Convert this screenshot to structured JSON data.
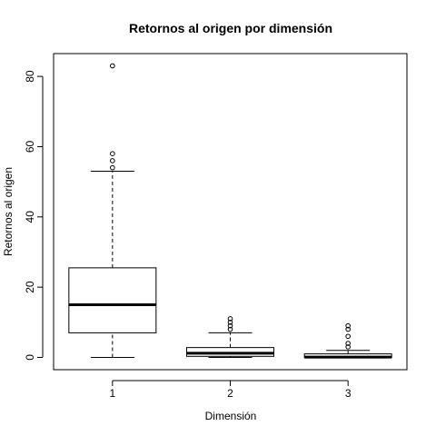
{
  "chart_data": {
    "type": "boxplot",
    "title": "Retornos al origen por dimensión",
    "xlabel": "Dimensión",
    "ylabel": "Retornos al origen",
    "categories": [
      "1",
      "2",
      "3"
    ],
    "ylim": [
      -3.5,
      86.5
    ],
    "yticks": [
      0,
      20,
      40,
      60,
      80
    ],
    "grid": false,
    "boxes": [
      {
        "category": "1",
        "whisker_low": 0,
        "q1": 7,
        "median": 15,
        "q3": 25.5,
        "whisker_high": 53,
        "outliers": [
          54,
          56,
          58,
          83
        ]
      },
      {
        "category": "2",
        "whisker_low": 0,
        "q1": 0.3,
        "median": 1.2,
        "q3": 2.8,
        "whisker_high": 7,
        "outliers": [
          8,
          9,
          10,
          11
        ]
      },
      {
        "category": "3",
        "whisker_low": 0,
        "q1": 0,
        "median": 0.1,
        "q3": 1,
        "whisker_high": 2,
        "outliers": [
          3,
          4,
          6,
          8,
          9
        ]
      }
    ]
  }
}
